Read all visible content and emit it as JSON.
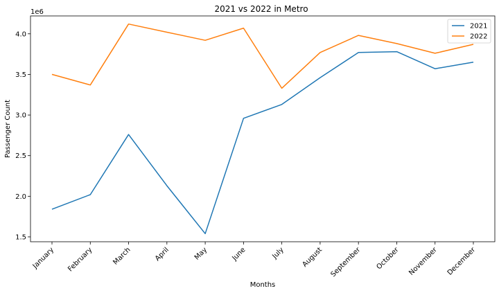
{
  "chart_data": {
    "type": "line",
    "title": "2021 vs 2022 in Metro",
    "xlabel": "Months",
    "ylabel": "Passenger Count",
    "y_offset_label": "1e6",
    "categories": [
      "January",
      "February",
      "March",
      "April",
      "May",
      "June",
      "July",
      "August",
      "September",
      "October",
      "November",
      "December"
    ],
    "ylim": [
      1.44,
      4.22
    ],
    "yticks": [
      1.5,
      2.0,
      2.5,
      3.0,
      3.5,
      4.0
    ],
    "ytick_labels": [
      "1.5",
      "2.0",
      "2.5",
      "3.0",
      "3.5",
      "4.0"
    ],
    "grid": false,
    "legend_position": "top-right",
    "series": [
      {
        "name": "2021",
        "color": "#1f77b4",
        "values": [
          1.84,
          2.02,
          2.76,
          2.13,
          1.54,
          2.96,
          3.13,
          3.46,
          3.77,
          3.78,
          3.57,
          3.65
        ]
      },
      {
        "name": "2022",
        "color": "#ff7f0e",
        "values": [
          3.5,
          3.37,
          4.12,
          4.02,
          3.92,
          4.07,
          3.33,
          3.77,
          3.98,
          3.88,
          3.76,
          3.87
        ]
      }
    ]
  }
}
